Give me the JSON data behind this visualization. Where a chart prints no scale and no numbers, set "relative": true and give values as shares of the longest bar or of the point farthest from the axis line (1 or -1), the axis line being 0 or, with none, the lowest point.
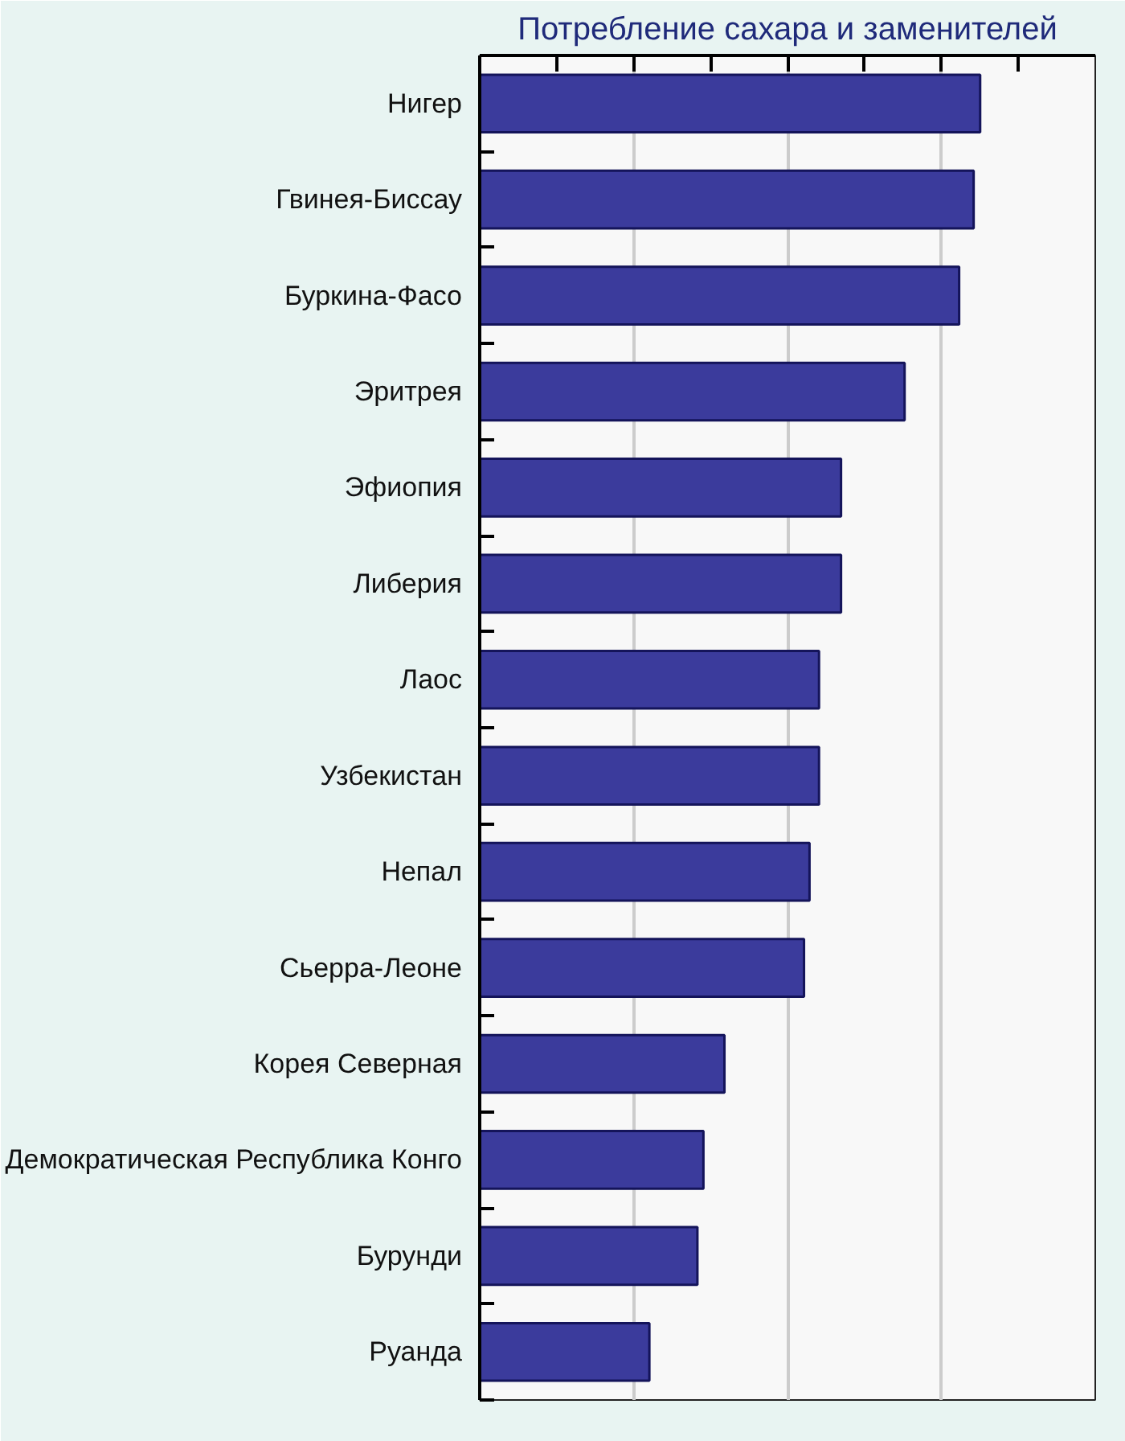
{
  "chart_data": {
    "type": "bar",
    "orientation": "horizontal",
    "relative": true,
    "title": "Потребление сахара и заменителей",
    "categories": [
      "Нигер",
      "Гвинея-Биссау",
      "Буркина-Фасо",
      "Эритрея",
      "Эфиопия",
      "Либерия",
      "Лаос",
      "Узбекистан",
      "Непал",
      "Сьерра-Леоне",
      "Корея Северная",
      "Демократическая Республика Конго",
      "Бурунди",
      "Руанда"
    ],
    "values": [
      1,
      0.987,
      0.958,
      0.849,
      0.722,
      0.722,
      0.678,
      0.678,
      0.659,
      0.648,
      0.489,
      0.447,
      0.435,
      0.339
    ],
    "color": "#3b3b9c",
    "grid": "x"
  }
}
